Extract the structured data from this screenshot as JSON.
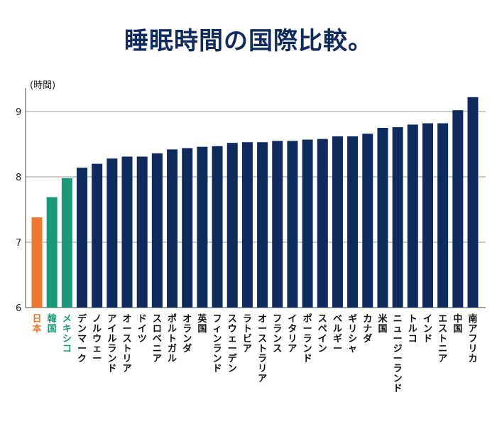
{
  "chart_data": {
    "type": "bar",
    "title": "睡眠時間の国際比較。",
    "ylabel": "(時間)",
    "xlabel": "",
    "ylim": [
      6,
      9.3
    ],
    "yticks": [
      6,
      7,
      8,
      9
    ],
    "grid": true,
    "categories": [
      "日本",
      "韓国",
      "メキシコ",
      "デンマーク",
      "ノルウェー",
      "アイルランド",
      "オーストリア",
      "ドイツ",
      "スロベニア",
      "ポルトガル",
      "オランダ",
      "英国",
      "フィンランド",
      "スウェーデン",
      "ラトビア",
      "オーストラリア",
      "フランス",
      "イタリア",
      "ポーランド",
      "スペイン",
      "ベルギー",
      "ギリシャ",
      "カナダ",
      "米国",
      "ニュージーランド",
      "トルコ",
      "インド",
      "エストニア",
      "中国",
      "南アフリカ"
    ],
    "values": [
      7.38,
      7.69,
      7.98,
      8.14,
      8.2,
      8.28,
      8.31,
      8.31,
      8.36,
      8.42,
      8.44,
      8.46,
      8.47,
      8.52,
      8.53,
      8.53,
      8.55,
      8.55,
      8.57,
      8.58,
      8.62,
      8.62,
      8.66,
      8.75,
      8.76,
      8.8,
      8.82,
      8.82,
      9.02,
      9.22
    ],
    "colors": [
      "#ef7a2f",
      "#1a9a7a",
      "#1a9a7a",
      "#0f2a5c",
      "#0f2a5c",
      "#0f2a5c",
      "#0f2a5c",
      "#0f2a5c",
      "#0f2a5c",
      "#0f2a5c",
      "#0f2a5c",
      "#0f2a5c",
      "#0f2a5c",
      "#0f2a5c",
      "#0f2a5c",
      "#0f2a5c",
      "#0f2a5c",
      "#0f2a5c",
      "#0f2a5c",
      "#0f2a5c",
      "#0f2a5c",
      "#0f2a5c",
      "#0f2a5c",
      "#0f2a5c",
      "#0f2a5c",
      "#0f2a5c",
      "#0f2a5c",
      "#0f2a5c",
      "#0f2a5c",
      "#0f2a5c"
    ],
    "label_colors": [
      "#ef7a2f",
      "#1a9a7a",
      "#1a9a7a",
      "#111111",
      "#111111",
      "#111111",
      "#111111",
      "#111111",
      "#111111",
      "#111111",
      "#111111",
      "#111111",
      "#111111",
      "#111111",
      "#111111",
      "#111111",
      "#111111",
      "#111111",
      "#111111",
      "#111111",
      "#111111",
      "#111111",
      "#111111",
      "#111111",
      "#111111",
      "#111111",
      "#111111",
      "#111111",
      "#111111",
      "#111111"
    ]
  }
}
